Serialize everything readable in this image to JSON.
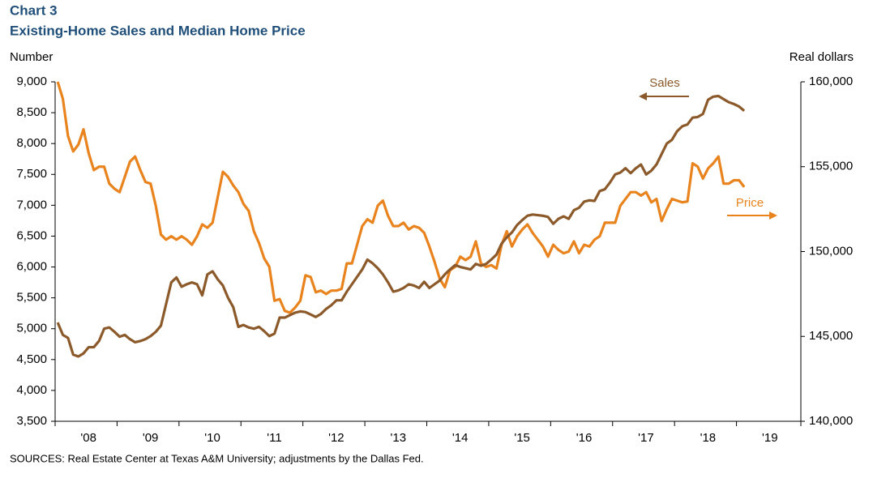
{
  "chart_data": {
    "type": "line",
    "title": "Chart 3",
    "subtitle": "Existing-Home  Sales and Median Home Price",
    "y_label": "Number",
    "y2_label": "Real  dollars",
    "source": "SOURCES:  Real Estate Center at Texas A&M University;  adjustments by the Dallas Fed.",
    "categories": [
      null,
      null,
      null,
      null,
      null,
      null,
      "'08",
      null,
      null,
      null,
      null,
      null,
      null,
      null,
      null,
      null,
      null,
      null,
      "'09",
      null,
      null,
      null,
      null,
      null,
      null,
      null,
      null,
      null,
      null,
      null,
      "'10",
      null,
      null,
      null,
      null,
      null,
      null,
      null,
      null,
      null,
      null,
      null,
      "'11",
      null,
      null,
      null,
      null,
      null,
      null,
      null,
      null,
      null,
      null,
      null,
      "'12",
      null,
      null,
      null,
      null,
      null,
      null,
      null,
      null,
      null,
      null,
      null,
      "'13",
      null,
      null,
      null,
      null,
      null,
      null,
      null,
      null,
      null,
      null,
      null,
      "'14",
      null,
      null,
      null,
      null,
      null,
      null,
      null,
      null,
      null,
      null,
      null,
      "'15",
      null,
      null,
      null,
      null,
      null,
      null,
      null,
      null,
      null,
      null,
      null,
      "'16",
      null,
      null,
      null,
      null,
      null,
      null,
      null,
      null,
      null,
      null,
      null,
      "'17",
      null,
      null,
      null,
      null,
      null,
      null,
      null,
      null,
      null,
      null,
      null,
      "'18",
      null,
      null,
      null,
      null,
      null,
      null,
      null,
      null,
      null,
      null,
      null,
      "'19",
      null,
      null,
      null,
      null,
      null
    ],
    "series": [
      {
        "name": "Sales",
        "color": "#8c5a2a",
        "values": [
          5100,
          4900,
          4850,
          4580,
          4550,
          4600,
          4700,
          4700,
          4800,
          5000,
          5020,
          4950,
          4870,
          4900,
          4830,
          4780,
          4800,
          4830,
          4880,
          4950,
          5050,
          5400,
          5750,
          5830,
          5680,
          5720,
          5750,
          5720,
          5540,
          5880,
          5930,
          5800,
          5700,
          5500,
          5350,
          5030,
          5060,
          5020,
          5000,
          5030,
          4960,
          4880,
          4920,
          5180,
          5180,
          5220,
          5260,
          5280,
          5270,
          5230,
          5190,
          5240,
          5320,
          5380,
          5460,
          5460,
          5600,
          5720,
          5840,
          5960,
          6120,
          6060,
          5980,
          5880,
          5750,
          5600,
          5620,
          5660,
          5720,
          5700,
          5660,
          5760,
          5660,
          5720,
          5780,
          5880,
          5960,
          6030,
          6000,
          5980,
          5960,
          6050,
          6020,
          6050,
          6120,
          6200,
          6380,
          6480,
          6560,
          6680,
          6760,
          6830,
          6850,
          6840,
          6830,
          6810,
          6700,
          6780,
          6820,
          6780,
          6920,
          6960,
          7060,
          7080,
          7070,
          7230,
          7260,
          7370,
          7500,
          7530,
          7600,
          7520,
          7600,
          7660,
          7500,
          7560,
          7660,
          7830,
          8000,
          8060,
          8200,
          8280,
          8310,
          8420,
          8430,
          8480,
          8710,
          8760,
          8770,
          8720,
          8670,
          8640,
          8600,
          8530,
          null,
          null,
          null,
          null,
          null,
          null,
          null,
          null,
          null,
          null
        ]
      },
      {
        "name": "Price",
        "color": "#e8831e",
        "axis": "y2",
        "values": [
          160000,
          159000,
          156800,
          155900,
          156300,
          157200,
          155800,
          154800,
          155000,
          155000,
          154000,
          153700,
          153500,
          154400,
          155300,
          155600,
          154800,
          154100,
          154000,
          152700,
          151000,
          150700,
          150900,
          150700,
          150900,
          150700,
          150400,
          150900,
          151600,
          151400,
          151700,
          153200,
          154700,
          154400,
          153900,
          153500,
          152800,
          152400,
          151200,
          150500,
          149600,
          149100,
          147100,
          147200,
          146500,
          146400,
          146700,
          147100,
          148600,
          148500,
          147600,
          147700,
          147500,
          147700,
          147700,
          147800,
          149300,
          149300,
          150400,
          151500,
          151900,
          151700,
          152700,
          153000,
          152100,
          151500,
          151500,
          151700,
          151300,
          151500,
          151400,
          151100,
          150300,
          149400,
          148400,
          147900,
          148900,
          149100,
          149700,
          149500,
          149700,
          150600,
          149300,
          149100,
          149200,
          149000,
          150400,
          151200,
          150300,
          150900,
          151300,
          151600,
          151100,
          150700,
          150300,
          149700,
          150400,
          150100,
          149900,
          150000,
          150600,
          149900,
          150400,
          150300,
          150700,
          150900,
          151700,
          151700,
          151700,
          152700,
          153100,
          153500,
          153500,
          153300,
          153500,
          152900,
          153100,
          151800,
          152500,
          153100,
          153000,
          152900,
          152950,
          155200,
          155000,
          154300,
          154900,
          155200,
          155600,
          154000,
          154000,
          154200,
          154200,
          153800,
          null,
          null,
          null,
          null,
          null,
          null,
          null,
          null,
          null,
          null
        ]
      }
    ],
    "ylim": [
      3500,
      9000
    ],
    "yticks": [
      {
        "value": 3500,
        "label": "3,500"
      },
      {
        "value": 4000,
        "label": "4,000"
      },
      {
        "value": 4500,
        "label": "4,500"
      },
      {
        "value": 5000,
        "label": "5,000"
      },
      {
        "value": 5500,
        "label": "5,500"
      },
      {
        "value": 6000,
        "label": "6,000"
      },
      {
        "value": 6500,
        "label": "6,500"
      },
      {
        "value": 7000,
        "label": "7,000"
      },
      {
        "value": 7500,
        "label": "7,500"
      },
      {
        "value": 8000,
        "label": "8,000"
      },
      {
        "value": 8500,
        "label": "8,500"
      },
      {
        "value": 9000,
        "label": "9,000"
      }
    ],
    "y2lim": [
      140000,
      160000
    ],
    "y2ticks": [
      {
        "value": 140000,
        "label": "140,000"
      },
      {
        "value": 145000,
        "label": "145,000"
      },
      {
        "value": 150000,
        "label": "150,000"
      },
      {
        "value": 155000,
        "label": "155,000"
      },
      {
        "value": 160000,
        "label": "160,000"
      }
    ],
    "grid": false
  }
}
